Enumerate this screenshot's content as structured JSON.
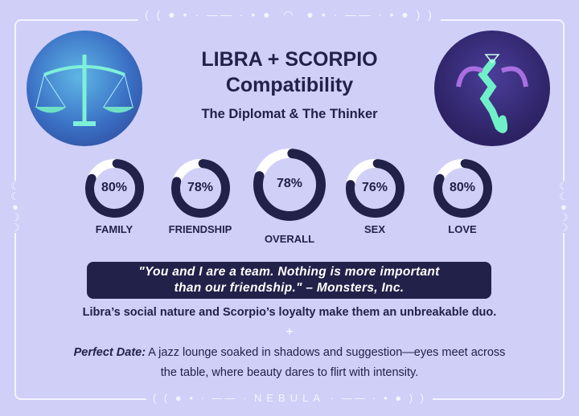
{
  "header": {
    "title_line1": "LIBRA + SCORPIO",
    "title_line2": "Compatibility",
    "subtitle": "The Diplomat & The Thinker"
  },
  "images": {
    "left": "libra-scales-illustration",
    "right": "scorpio-scorpion-illustration"
  },
  "ratings": [
    {
      "label": "FAMILY",
      "value": 80,
      "text": "80%"
    },
    {
      "label": "FRIENDSHIP",
      "value": 78,
      "text": "78%"
    },
    {
      "label": "OVERALL",
      "value": 78,
      "text": "78%"
    },
    {
      "label": "SEX",
      "value": 76,
      "text": "76%"
    },
    {
      "label": "LOVE",
      "value": 80,
      "text": "80%"
    }
  ],
  "quote": {
    "line1": "\"You and I are a team. Nothing is more important",
    "line2": "than our friendship.\" – Monsters, Inc."
  },
  "summary": "Libra’s social nature and Scorpio’s loyalty make them an unbreakable duo.",
  "separator": "+",
  "date": {
    "label": "Perfect Date:",
    "line1": " A jazz lounge soaked in shadows and suggestion—eyes meet across",
    "line2": "the table, where beauty dares to flirt with intensity."
  },
  "footer": {
    "brand": "NEBULA"
  },
  "colors": {
    "background": "#cfcff8",
    "navy": "#22214a",
    "ring_track": "#ffffff"
  }
}
